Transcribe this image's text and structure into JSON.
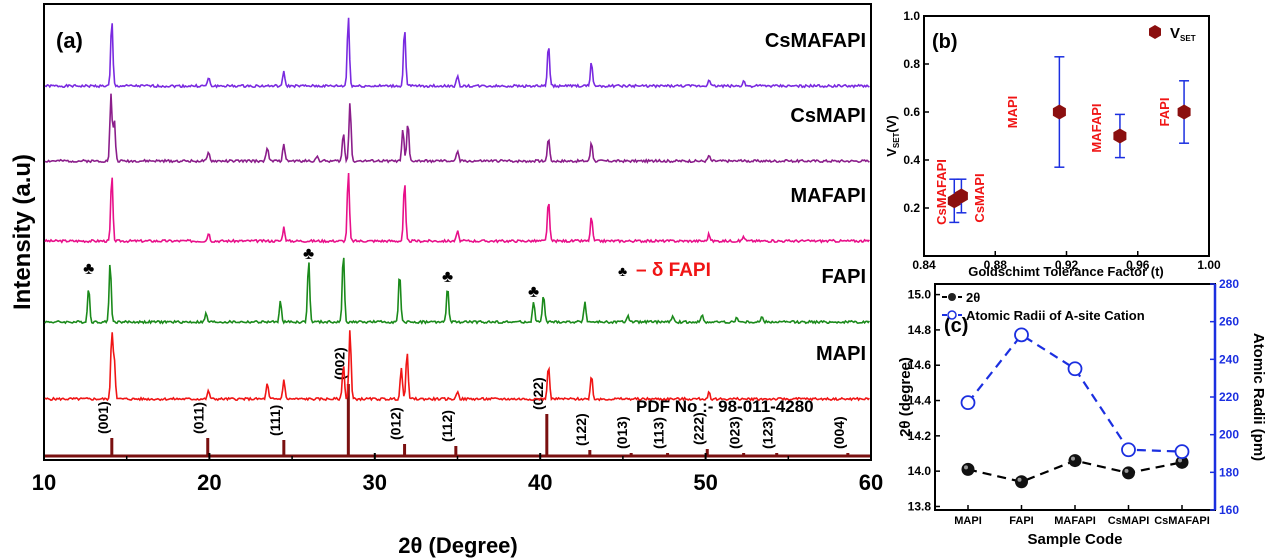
{
  "chart_data": [
    {
      "panel": "(a)",
      "type": "line",
      "xlabel": "2θ (Degree)",
      "ylabel": "Intensity (a.u)",
      "xlim": [
        10,
        60
      ],
      "xticks": [
        "10",
        "20",
        "30",
        "40",
        "50",
        "60"
      ],
      "series": [
        {
          "name": "CsMAFAPI",
          "color": "#7a2ae0",
          "peaks": [
            [
              14.1,
              0.95
            ],
            [
              19.95,
              0.12
            ],
            [
              24.5,
              0.2
            ],
            [
              28.4,
              1.0
            ],
            [
              31.8,
              0.85
            ],
            [
              35.0,
              0.14
            ],
            [
              40.5,
              0.6
            ],
            [
              43.1,
              0.35
            ],
            [
              50.2,
              0.1
            ],
            [
              52.3,
              0.08
            ]
          ]
        },
        {
          "name": "CsMAPI",
          "color": "#8b1e8b",
          "peaks": [
            [
              14.05,
              0.95
            ],
            [
              14.25,
              0.6
            ],
            [
              19.95,
              0.12
            ],
            [
              23.5,
              0.2
            ],
            [
              24.5,
              0.25
            ],
            [
              26.5,
              0.08
            ],
            [
              28.1,
              0.4
            ],
            [
              28.5,
              0.85
            ],
            [
              31.7,
              0.45
            ],
            [
              32.0,
              0.55
            ],
            [
              35.0,
              0.15
            ],
            [
              40.5,
              0.35
            ],
            [
              43.1,
              0.28
            ],
            [
              50.2,
              0.08
            ]
          ]
        },
        {
          "name": "MAFAPI",
          "color": "#e8108a",
          "peaks": [
            [
              14.1,
              0.95
            ],
            [
              19.95,
              0.12
            ],
            [
              24.5,
              0.2
            ],
            [
              28.4,
              1.0
            ],
            [
              31.8,
              0.85
            ],
            [
              35.0,
              0.14
            ],
            [
              40.5,
              0.6
            ],
            [
              43.1,
              0.35
            ],
            [
              50.2,
              0.1
            ],
            [
              52.3,
              0.07
            ]
          ]
        },
        {
          "name": "FAPI",
          "color": "#1b8a1b",
          "peaks": [
            [
              12.7,
              0.5
            ],
            [
              14.0,
              0.85
            ],
            [
              19.8,
              0.12
            ],
            [
              24.3,
              0.3
            ],
            [
              26.0,
              0.9
            ],
            [
              28.1,
              1.0
            ],
            [
              31.5,
              0.7
            ],
            [
              34.4,
              0.52
            ],
            [
              39.6,
              0.3
            ],
            [
              40.2,
              0.4
            ],
            [
              42.7,
              0.3
            ],
            [
              45.3,
              0.1
            ],
            [
              48.0,
              0.08
            ],
            [
              49.8,
              0.1
            ],
            [
              51.9,
              0.07
            ],
            [
              53.4,
              0.07
            ]
          ]
        },
        {
          "name": "MAPI",
          "color": "#f01515",
          "peaks": [
            [
              14.1,
              0.95
            ],
            [
              14.25,
              0.55
            ],
            [
              19.95,
              0.12
            ],
            [
              23.5,
              0.22
            ],
            [
              24.5,
              0.28
            ],
            [
              28.1,
              0.5
            ],
            [
              28.5,
              1.0
            ],
            [
              31.6,
              0.45
            ],
            [
              31.95,
              0.7
            ],
            [
              35.0,
              0.12
            ],
            [
              40.5,
              0.5
            ],
            [
              43.1,
              0.35
            ],
            [
              50.2,
              0.1
            ]
          ]
        }
      ],
      "reference": {
        "label": "PDF No :- 98-011-4280",
        "color": "#7a1010",
        "lines": [
          {
            "x": 14.1,
            "h": 0.18,
            "hkl": "(001)"
          },
          {
            "x": 19.9,
            "h": 0.18,
            "hkl": "(011)"
          },
          {
            "x": 24.5,
            "h": 0.16,
            "hkl": "(111)"
          },
          {
            "x": 28.4,
            "h": 0.72,
            "hkl": "(002)"
          },
          {
            "x": 31.8,
            "h": 0.12,
            "hkl": "(012)"
          },
          {
            "x": 34.9,
            "h": 0.1,
            "hkl": "(112)"
          },
          {
            "x": 40.4,
            "h": 0.42,
            "hkl": "(022)"
          },
          {
            "x": 43.0,
            "h": 0.06,
            "hkl": "(122)"
          },
          {
            "x": 45.5,
            "h": 0.03,
            "hkl": "(013)"
          },
          {
            "x": 47.7,
            "h": 0.03,
            "hkl": "(113)"
          },
          {
            "x": 50.1,
            "h": 0.07,
            "hkl": "(222)"
          },
          {
            "x": 52.3,
            "h": 0.03,
            "hkl": "(023)"
          },
          {
            "x": 54.3,
            "h": 0.03,
            "hkl": "(123)"
          },
          {
            "x": 58.6,
            "h": 0.03,
            "hkl": "(004)"
          }
        ]
      },
      "impurity_marker_x": [
        12.7,
        26.0,
        34.4,
        39.6
      ],
      "annotations": {
        "panel_label": "(a)",
        "club_symbol": "♣",
        "delta_label": "– δ FAPI"
      }
    },
    {
      "panel": "(b)",
      "type": "scatter",
      "xlabel": "Goldschimt Tolerance Factor (t)",
      "ylabel": "V",
      "ylabel_sub": "SET",
      "ylabel_unit": "(V)",
      "xlim": [
        0.84,
        1.0
      ],
      "ylim": [
        0.0,
        1.0
      ],
      "xticks": [
        "0.84",
        "0.88",
        "0.92",
        "0.96",
        "1.00"
      ],
      "yticks": [
        "0.2",
        "0.4",
        "0.6",
        "0.8",
        "1.0"
      ],
      "legend": {
        "main": "V",
        "sub": "SET"
      },
      "marker_color": "#8b0f0f",
      "points": [
        {
          "label": "CsMAFAPI",
          "x": 0.857,
          "y": 0.23,
          "err": 0.09
        },
        {
          "label": "CsMAPI",
          "x": 0.861,
          "y": 0.25,
          "err": 0.07
        },
        {
          "label": "MAPI",
          "x": 0.916,
          "y": 0.6,
          "err": 0.23
        },
        {
          "label": "MAFAPI",
          "x": 0.95,
          "y": 0.5,
          "err": 0.09
        },
        {
          "label": "FAPI",
          "x": 0.986,
          "y": 0.6,
          "err": 0.13
        }
      ]
    },
    {
      "panel": "(c)",
      "type": "line",
      "xlabel": "Sample Code",
      "ylabel": "2θ (degree)",
      "y2label": "Atomic Radii (pm)",
      "categories": [
        "MAPI",
        "FAPI",
        "MAFAPI",
        "CsMAPI",
        "CsMAFAPI"
      ],
      "ylim": [
        13.78,
        15.06
      ],
      "y2lim": [
        160,
        280
      ],
      "yticks": [
        "13.8",
        "14.0",
        "14.2",
        "14.4",
        "14.6",
        "14.8",
        "15.0"
      ],
      "y2ticks": [
        "160",
        "180",
        "200",
        "220",
        "240",
        "260",
        "280"
      ],
      "series": [
        {
          "name": "2θ",
          "axis": "left",
          "color": "#000000",
          "values": [
            14.01,
            13.94,
            14.06,
            13.99,
            14.05
          ]
        },
        {
          "name": "Atomic Radii of A-site Cation",
          "axis": "right",
          "color": "#1b2fe0",
          "values": [
            217,
            253,
            235,
            192,
            191
          ]
        }
      ]
    }
  ]
}
